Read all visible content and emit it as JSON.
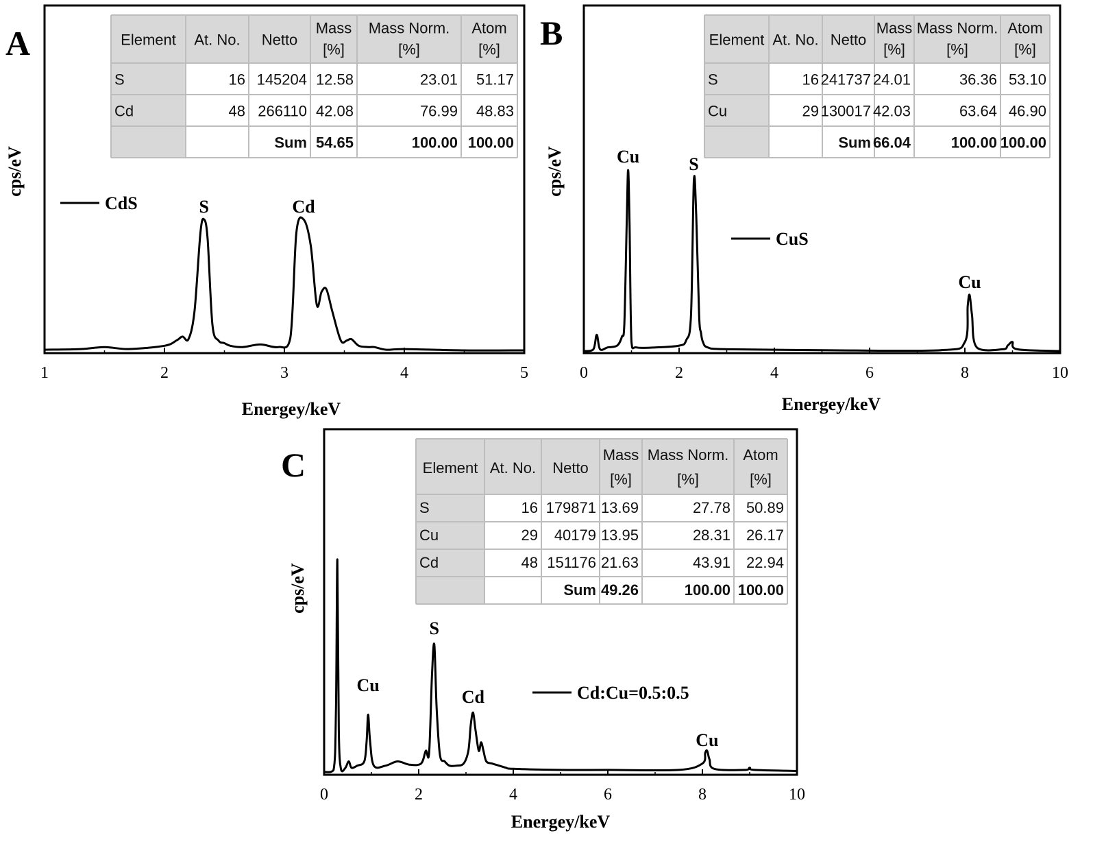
{
  "chart_data": [
    {
      "panel": "A",
      "type": "line",
      "xlabel": "Energey/keV",
      "ylabel": "cps/eV",
      "xlim": [
        1,
        5
      ],
      "xticks": [
        "1",
        "2",
        "3",
        "4",
        "5"
      ],
      "series": [
        {
          "name": "CdS",
          "color": "#000000",
          "x": [
            1.0,
            1.3,
            1.5,
            1.7,
            2.0,
            2.1,
            2.15,
            2.2,
            2.25,
            2.3,
            2.33,
            2.36,
            2.4,
            2.45,
            2.5,
            2.55,
            2.65,
            2.8,
            2.95,
            3.05,
            3.1,
            3.16,
            3.22,
            3.27,
            3.31,
            3.35,
            3.4,
            3.47,
            3.52,
            3.56,
            3.62,
            3.7,
            3.75,
            3.85,
            4.0,
            4.5,
            5.0
          ],
          "y": [
            0.01,
            0.015,
            0.03,
            0.015,
            0.04,
            0.08,
            0.11,
            0.09,
            0.3,
            0.9,
            1.0,
            0.85,
            0.2,
            0.08,
            0.06,
            0.04,
            0.03,
            0.05,
            0.03,
            0.1,
            0.9,
            1.0,
            0.8,
            0.35,
            0.45,
            0.47,
            0.3,
            0.08,
            0.08,
            0.09,
            0.04,
            0.03,
            0.03,
            0.01,
            0.015,
            0.005,
            0.005
          ]
        }
      ],
      "peak_labels": [
        {
          "text": "S",
          "x": 2.33
        },
        {
          "text": "Cd",
          "x": 3.16
        }
      ],
      "table": {
        "headers": [
          "Element",
          "At. No.",
          "Netto",
          "Mass [%]",
          "Mass Norm. [%]",
          "Atom [%]"
        ],
        "rows": [
          [
            "S",
            "16",
            "145204",
            "12.58",
            "23.01",
            "51.17"
          ],
          [
            "Cd",
            "48",
            "266110",
            "42.08",
            "76.99",
            "48.83"
          ],
          [
            "",
            "",
            "Sum",
            "54.65",
            "100.00",
            "100.00"
          ]
        ]
      }
    },
    {
      "panel": "B",
      "type": "line",
      "xlabel": "Energey/keV",
      "ylabel": "cps/eV",
      "xlim": [
        0,
        10
      ],
      "xticks": [
        "0",
        "2",
        "4",
        "6",
        "8",
        "10"
      ],
      "series": [
        {
          "name": "CuS",
          "color": "#000000",
          "x": [
            0.0,
            0.2,
            0.27,
            0.34,
            0.5,
            0.7,
            0.8,
            0.85,
            0.9,
            0.93,
            0.96,
            1.0,
            1.1,
            1.5,
            2.0,
            2.15,
            2.25,
            2.31,
            2.36,
            2.42,
            2.46,
            2.5,
            2.6,
            3.0,
            5.0,
            7.5,
            8.0,
            8.06,
            8.1,
            8.15,
            8.25,
            8.8,
            8.9,
            9.0,
            9.1,
            10.0
          ],
          "y": [
            0.0,
            0.01,
            0.09,
            0.01,
            0.02,
            0.03,
            0.08,
            0.15,
            0.7,
            1.0,
            0.7,
            0.05,
            0.02,
            0.02,
            0.03,
            0.06,
            0.2,
            0.94,
            0.75,
            0.2,
            0.1,
            0.05,
            0.02,
            0.01,
            0.005,
            0.005,
            0.05,
            0.25,
            0.31,
            0.2,
            0.02,
            0.01,
            0.03,
            0.05,
            0.01,
            0.0
          ]
        }
      ],
      "peak_labels": [
        {
          "text": "Cu",
          "x": 0.93
        },
        {
          "text": "S",
          "x": 2.31
        },
        {
          "text": "Cu",
          "x": 8.1
        }
      ],
      "table": {
        "headers": [
          "Element",
          "At. No.",
          "Netto",
          "Mass [%]",
          "Mass Norm. [%]",
          "Atom [%]"
        ],
        "rows": [
          [
            "S",
            "16",
            "241737",
            "24.01",
            "36.36",
            "53.10"
          ],
          [
            "Cu",
            "29",
            "130017",
            "42.03",
            "63.64",
            "46.90"
          ],
          [
            "",
            "",
            "Sum",
            "66.04",
            "100.00",
            "100.00"
          ]
        ]
      }
    },
    {
      "panel": "C",
      "type": "line",
      "xlabel": "Energey/keV",
      "ylabel": "cps/eV",
      "xlim": [
        0,
        10
      ],
      "xticks": [
        "0",
        "2",
        "4",
        "6",
        "8",
        "10"
      ],
      "series": [
        {
          "name": "Cd:Cu=0.5:0.5",
          "color": "#000000",
          "x": [
            0.0,
            0.2,
            0.25,
            0.28,
            0.31,
            0.36,
            0.45,
            0.52,
            0.58,
            0.7,
            0.85,
            0.9,
            0.93,
            0.97,
            1.05,
            1.3,
            1.55,
            1.8,
            2.05,
            2.15,
            2.22,
            2.28,
            2.33,
            2.38,
            2.45,
            2.55,
            2.65,
            2.8,
            2.95,
            3.05,
            3.1,
            3.15,
            3.2,
            3.27,
            3.32,
            3.37,
            3.43,
            3.55,
            3.7,
            3.85,
            4.0,
            5.0,
            6.0,
            7.5,
            8.0,
            8.06,
            8.1,
            8.15,
            8.25,
            8.9,
            9.0,
            9.1,
            10.0
          ],
          "y": [
            0.0,
            0.01,
            0.3,
            1.0,
            0.2,
            0.01,
            0.02,
            0.05,
            0.02,
            0.03,
            0.05,
            0.15,
            0.27,
            0.15,
            0.03,
            0.03,
            0.05,
            0.035,
            0.04,
            0.1,
            0.09,
            0.45,
            0.6,
            0.3,
            0.08,
            0.05,
            0.03,
            0.03,
            0.04,
            0.1,
            0.22,
            0.28,
            0.2,
            0.1,
            0.14,
            0.1,
            0.05,
            0.04,
            0.03,
            0.02,
            0.015,
            0.01,
            0.01,
            0.01,
            0.04,
            0.09,
            0.1,
            0.06,
            0.015,
            0.01,
            0.02,
            0.01,
            0.005
          ]
        }
      ],
      "peak_labels": [
        {
          "text": "Cu",
          "x": 0.93
        },
        {
          "text": "S",
          "x": 2.33
        },
        {
          "text": "Cd",
          "x": 3.15
        },
        {
          "text": "Cu",
          "x": 8.1
        }
      ],
      "table": {
        "headers": [
          "Element",
          "At. No.",
          "Netto",
          "Mass [%]",
          "Mass Norm. [%]",
          "Atom [%]"
        ],
        "rows": [
          [
            "S",
            "16",
            "179871",
            "13.69",
            "27.78",
            "50.89"
          ],
          [
            "Cu",
            "29",
            "40179",
            "13.95",
            "28.31",
            "26.17"
          ],
          [
            "Cd",
            "48",
            "151176",
            "21.63",
            "43.91",
            "22.94"
          ],
          [
            "",
            "",
            "Sum",
            "49.26",
            "100.00",
            "100.00"
          ]
        ]
      }
    }
  ]
}
